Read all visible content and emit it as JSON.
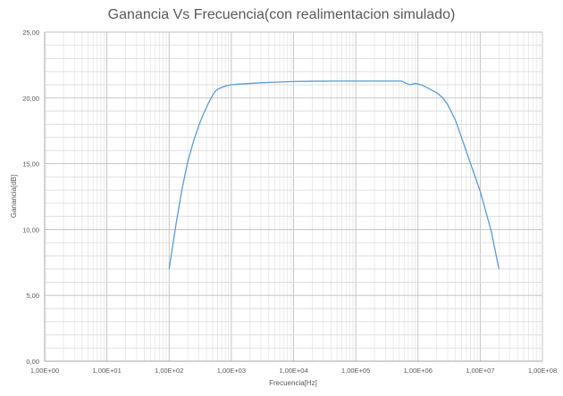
{
  "chart_data": {
    "type": "line",
    "title": "Ganancia Vs Frecuencia(con realimentacion simulado)",
    "xlabel": "Frecuencia[Hz]",
    "ylabel": "Ganancia[dB]",
    "x_scale": "log",
    "xlim": [
      1,
      100000000
    ],
    "ylim": [
      0,
      25
    ],
    "x_tick_labels": [
      "1,00E+00",
      "1,00E+01",
      "1,00E+02",
      "1,00E+03",
      "1,00E+04",
      "1,00E+05",
      "1,00E+06",
      "1,00E+07",
      "1,00E+08"
    ],
    "y_tick_labels": [
      "0,00",
      "5,00",
      "10,00",
      "15,00",
      "20,00",
      "25,00"
    ],
    "grid": true,
    "legend": "none",
    "line_color": "#5b9bd5",
    "series": [
      {
        "x": [
          100,
          130,
          160,
          200,
          250,
          300,
          350,
          400,
          450,
          500,
          550,
          600,
          700,
          800,
          1000,
          1300,
          2000,
          3000,
          5000,
          10000,
          20000,
          50000,
          100000,
          200000,
          400000,
          550000,
          650000,
          750000,
          900000,
          1000000,
          1200000,
          1500000,
          2000000,
          2500000,
          3000000,
          4000000,
          5000000,
          7000000,
          10000000,
          15000000,
          20000000
        ],
        "y": [
          7.0,
          10.5,
          13.0,
          15.2,
          16.8,
          17.9,
          18.7,
          19.3,
          19.8,
          20.2,
          20.5,
          20.65,
          20.8,
          20.9,
          21.0,
          21.05,
          21.1,
          21.15,
          21.2,
          21.25,
          21.27,
          21.28,
          21.28,
          21.28,
          21.28,
          21.28,
          21.1,
          21.0,
          21.1,
          21.05,
          20.95,
          20.7,
          20.4,
          20.0,
          19.5,
          18.3,
          17.0,
          15.0,
          12.9,
          9.9,
          7.0
        ]
      }
    ]
  }
}
